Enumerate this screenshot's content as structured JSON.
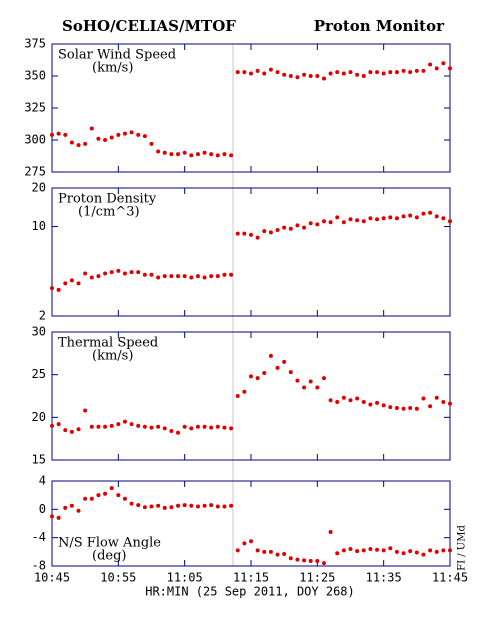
{
  "header": {
    "left": "SoHO/CELIAS/MTOF",
    "right": "Proton Monitor"
  },
  "side_note": "FI / UMd",
  "x_axis": {
    "label": "HR:MIN (25 Sep 2011, DOY 268)",
    "xlim": [
      "10:45",
      "11:45"
    ],
    "xticks": [
      "10:45",
      "10:55",
      "11:05",
      "11:15",
      "11:25",
      "11:35",
      "11:45"
    ],
    "x": [
      "10:45",
      "10:46",
      "10:47",
      "10:48",
      "10:49",
      "10:50",
      "10:51",
      "10:52",
      "10:53",
      "10:54",
      "10:55",
      "10:56",
      "10:57",
      "10:58",
      "10:59",
      "11:00",
      "11:01",
      "11:02",
      "11:03",
      "11:04",
      "11:05",
      "11:06",
      "11:07",
      "11:08",
      "11:09",
      "11:10",
      "11:11",
      "11:12",
      "11:13",
      "11:14",
      "11:15",
      "11:16",
      "11:17",
      "11:18",
      "11:19",
      "11:20",
      "11:21",
      "11:22",
      "11:23",
      "11:24",
      "11:25",
      "11:26",
      "11:27",
      "11:28",
      "11:29",
      "11:30",
      "11:31",
      "11:32",
      "11:33",
      "11:34",
      "11:35",
      "11:36",
      "11:37",
      "11:38",
      "11:39",
      "11:40",
      "11:41",
      "11:42",
      "11:43",
      "11:44",
      "11:45"
    ]
  },
  "chart_data": [
    {
      "type": "scatter",
      "title": "Solar Wind Speed",
      "subtitle": "(km/s)",
      "color": "#e00000",
      "log": false,
      "ylim": [
        275,
        375
      ],
      "yticks": [
        275,
        300,
        325,
        350,
        375
      ],
      "values": [
        304,
        305,
        304,
        298,
        296,
        297,
        309,
        301,
        300,
        302,
        304,
        305,
        306,
        304,
        303,
        297,
        291,
        290,
        289,
        289,
        290,
        288,
        289,
        290,
        289,
        288,
        289,
        288,
        353,
        353,
        352,
        354,
        352,
        355,
        353,
        351,
        350,
        349,
        351,
        350,
        350,
        348,
        352,
        353,
        352,
        353,
        351,
        350,
        353,
        353,
        352,
        353,
        353,
        354,
        353,
        354,
        354,
        359,
        356,
        360,
        356
      ]
    },
    {
      "type": "scatter",
      "title": "Proton Density",
      "subtitle": "(1/cm^3)",
      "color": "#e00000",
      "log": true,
      "ylim": [
        2,
        20
      ],
      "yticks": [
        2,
        10,
        20
      ],
      "values": [
        3.3,
        3.2,
        3.6,
        3.8,
        3.6,
        4.3,
        4.0,
        4.1,
        4.3,
        4.4,
        4.5,
        4.3,
        4.4,
        4.4,
        4.2,
        4.2,
        4.0,
        4.1,
        4.1,
        4.1,
        4.1,
        4.0,
        4.1,
        4.0,
        4.1,
        4.1,
        4.2,
        4.2,
        8.8,
        8.8,
        8.6,
        8.2,
        9.2,
        9.0,
        9.4,
        9.8,
        9.6,
        10.2,
        9.8,
        10.6,
        10.4,
        11.0,
        10.8,
        11.8,
        10.8,
        11.4,
        11.2,
        11.0,
        11.6,
        11.4,
        11.6,
        11.8,
        11.6,
        12.0,
        12.2,
        11.8,
        12.6,
        12.8,
        12.0,
        11.6,
        11.0
      ]
    },
    {
      "type": "scatter",
      "title": "Thermal Speed",
      "subtitle": "(km/s)",
      "color": "#e00000",
      "log": false,
      "ylim": [
        15,
        30
      ],
      "yticks": [
        15,
        20,
        25,
        30
      ],
      "values": [
        19,
        19.2,
        18.5,
        18.3,
        18.6,
        20.8,
        18.9,
        18.9,
        18.9,
        19,
        19.2,
        19.5,
        19.2,
        19,
        18.9,
        18.8,
        18.9,
        18.7,
        18.4,
        18.2,
        18.9,
        18.7,
        18.9,
        18.9,
        18.8,
        18.9,
        18.8,
        18.7,
        22.5,
        23,
        24.8,
        24.6,
        25.2,
        27.2,
        25.8,
        26.5,
        25.3,
        24.3,
        23.5,
        24.2,
        23.5,
        24.6,
        22,
        21.8,
        22.3,
        22,
        22.2,
        21.8,
        21.5,
        21.7,
        21.4,
        21.2,
        21.1,
        21.0,
        21.1,
        21.0,
        22.2,
        21.3,
        22.3,
        21.8,
        21.6
      ]
    },
    {
      "type": "scatter",
      "title": "N/S Flow Angle",
      "subtitle": "(deg)",
      "color": "#e00000",
      "log": false,
      "ylim": [
        -8,
        4
      ],
      "yticks": [
        -8,
        -4,
        0,
        4
      ],
      "values": [
        -1,
        -1.2,
        0.2,
        0.5,
        -0.2,
        1.5,
        1.5,
        2,
        2.2,
        3,
        2,
        1.5,
        0.8,
        0.6,
        0.3,
        0.4,
        0.5,
        0.2,
        0.3,
        0.5,
        0.6,
        0.5,
        0.4,
        0.5,
        0.6,
        0.4,
        0.4,
        0.5,
        -5.8,
        -4.8,
        -4.5,
        -5.8,
        -6,
        -6,
        -6.4,
        -6.3,
        -6.9,
        -7.1,
        -7.2,
        -7.3,
        -7.3,
        -7.6,
        -3.2,
        -6.2,
        -5.8,
        -5.6,
        -5.9,
        -5.8,
        -5.6,
        -5.7,
        -5.8,
        -5.5,
        -6.0,
        -6.2,
        -5.9,
        -6.1,
        -6.4,
        -5.8,
        -6.0,
        -5.8,
        -5.8
      ]
    }
  ]
}
